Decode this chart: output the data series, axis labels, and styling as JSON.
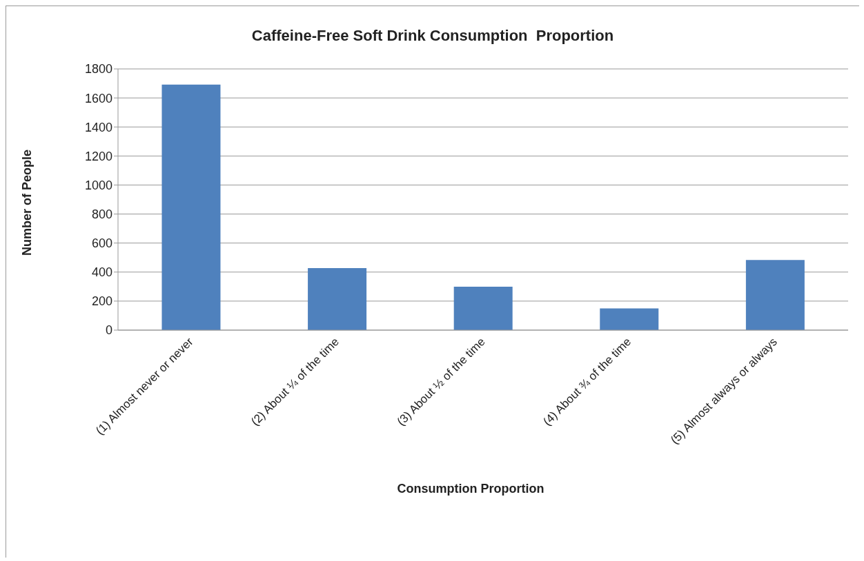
{
  "chart_data": {
    "type": "bar",
    "title": "Caffeine-Free Soft Drink Consumption  Proportion",
    "xlabel": "Consumption Proportion",
    "ylabel": "Number of People",
    "categories": [
      "(1) Almost never or never",
      "(2) About ¼ of the time",
      "(3) About ½ of the time",
      "(4) About ¾ of the time",
      "(5) Almost always or always"
    ],
    "values": [
      1692,
      427,
      299,
      150,
      483
    ],
    "color": "#4f81bd",
    "ylim": [
      0,
      1800
    ],
    "yticks": [
      0,
      200,
      400,
      600,
      800,
      1000,
      1200,
      1400,
      1600,
      1800
    ],
    "grid": "y"
  }
}
